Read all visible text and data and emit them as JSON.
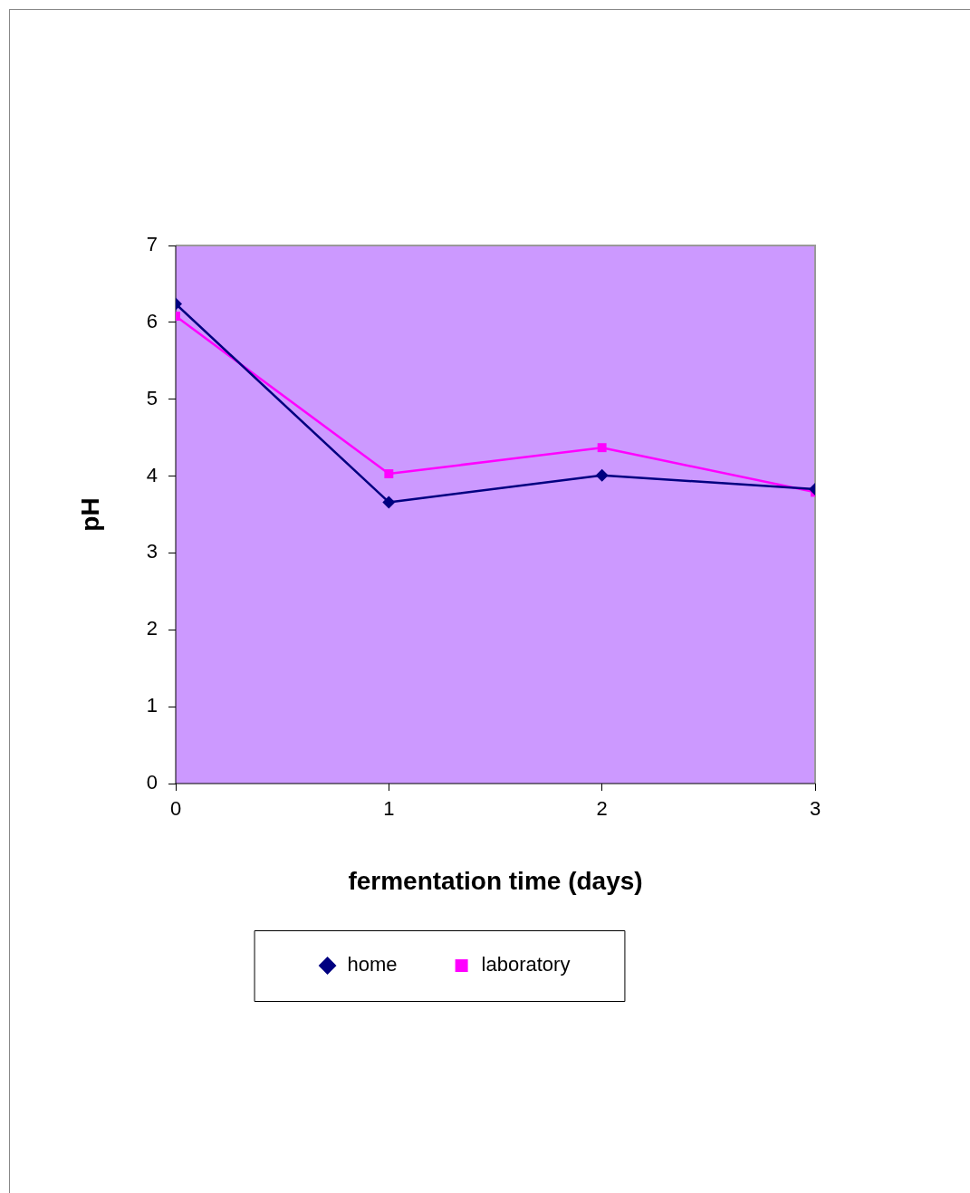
{
  "chart_data": {
    "type": "line",
    "xlabel": "fermentation time (days)",
    "ylabel": "pH",
    "x": [
      0,
      1,
      2,
      3
    ],
    "series": [
      {
        "name": "home",
        "color": "#000080",
        "marker": "diamond",
        "values": [
          6.24,
          3.66,
          4.01,
          3.83
        ]
      },
      {
        "name": "laboratory",
        "color": "#ff00ff",
        "marker": "square",
        "values": [
          6.08,
          4.03,
          4.37,
          3.79
        ]
      }
    ],
    "xlim": [
      0,
      3
    ],
    "xticks": [
      0,
      1,
      2,
      3
    ],
    "ylim": [
      0,
      7
    ],
    "yticks": [
      0,
      1,
      2,
      3,
      4,
      5,
      6,
      7
    ],
    "grid": false,
    "legend": "bottom",
    "line_style": "solid"
  }
}
